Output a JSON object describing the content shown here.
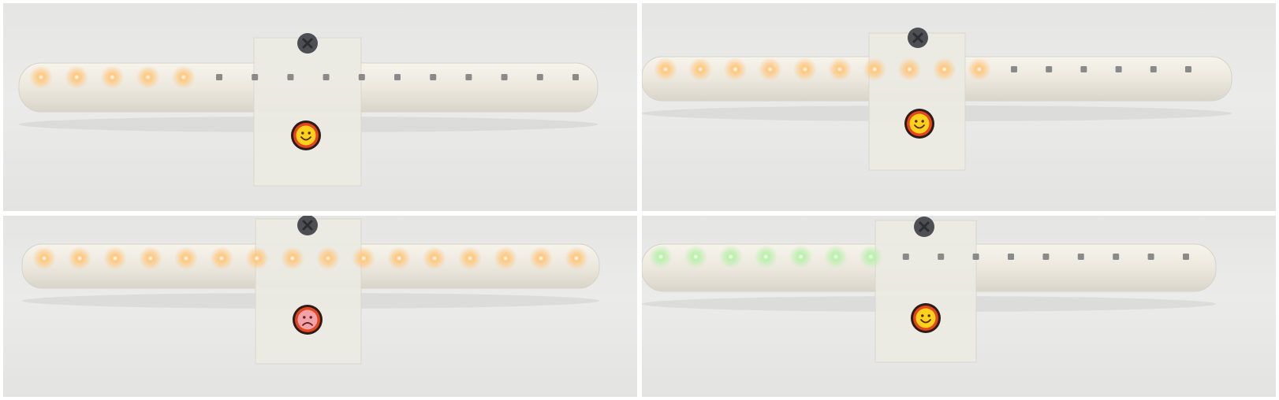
{
  "panels": [
    {
      "led_states": [
        "on",
        "on",
        "on",
        "on",
        "on",
        "off",
        "off",
        "off",
        "off",
        "off",
        "off",
        "off",
        "off",
        "off",
        "off",
        "off"
      ],
      "led_color": "#ffc67a",
      "face": "happy",
      "face_color": "#ffd21a"
    },
    {
      "led_states": [
        "on",
        "on",
        "on",
        "on",
        "on",
        "on",
        "on",
        "on",
        "on",
        "on",
        "off",
        "off",
        "off",
        "off",
        "off",
        "off"
      ],
      "led_color": "#ffc67a",
      "face": "happy",
      "face_color": "#ffd21a"
    },
    {
      "led_states": [
        "on",
        "on",
        "on",
        "on",
        "on",
        "on",
        "on",
        "on",
        "on",
        "on",
        "on",
        "on",
        "on",
        "on",
        "on",
        "on"
      ],
      "led_color": "#ffc67a",
      "face": "sad",
      "face_color": "#f2a3a8"
    },
    {
      "led_states": [
        "on",
        "on",
        "on",
        "on",
        "on",
        "on",
        "on",
        "off",
        "off",
        "off",
        "off",
        "off",
        "off",
        "off",
        "off",
        "off"
      ],
      "led_color": "#b7f0a8",
      "face": "happy",
      "face_color": "#ffd21a"
    }
  ],
  "colors": {
    "tube": "#ece8de",
    "device_body": "#ecebe3",
    "knob": "#4d4f54",
    "led_off": "#8a8a8a",
    "face_rim": "#2b1c18",
    "face_bezel": "#e4451e"
  }
}
